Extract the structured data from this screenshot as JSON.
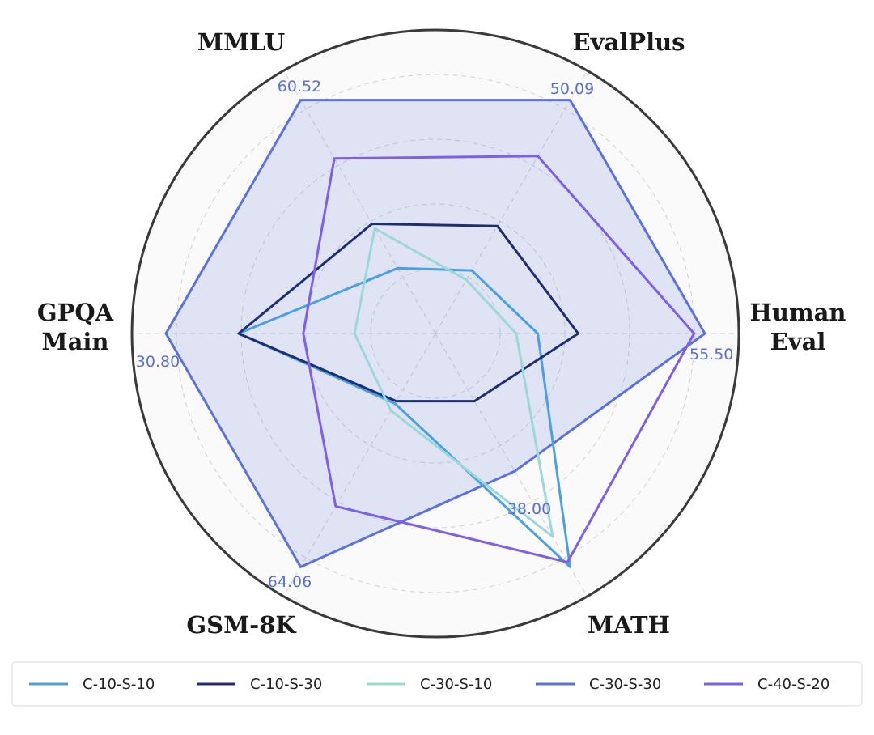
{
  "chart_data": {
    "type": "radar",
    "axes": [
      {
        "label": [
          "Human",
          "Eval"
        ],
        "max_label": "55.50"
      },
      {
        "label": [
          "EvalPlus"
        ],
        "max_label": "50.09"
      },
      {
        "label": [
          "MMLU"
        ],
        "max_label": "60.52"
      },
      {
        "label": [
          "GPQA",
          "Main"
        ],
        "max_label": "30.80"
      },
      {
        "label": [
          "GSM-8K"
        ],
        "max_label": "64.06"
      },
      {
        "label": [
          "MATH"
        ],
        "max_label": "38.00"
      }
    ],
    "normalization": "each axis scaled 0-1 relative to the labeled best value",
    "grid": true,
    "legend_position": "bottom",
    "series": [
      {
        "name": "C-10-S-10",
        "color": "#4b9fe3",
        "fill": false,
        "values": [
          0.38,
          0.27,
          0.28,
          0.73,
          0.3,
          1.0
        ]
      },
      {
        "name": "C-10-S-30",
        "color": "#1c2f73",
        "fill": false,
        "values": [
          0.53,
          0.46,
          0.47,
          0.73,
          0.29,
          0.29
        ]
      },
      {
        "name": "C-30-S-10",
        "color": "#9ad9d8",
        "fill": false,
        "values": [
          0.3,
          0.23,
          0.45,
          0.3,
          0.33,
          0.87
        ]
      },
      {
        "name": "C-30-S-30",
        "color": "#5a73dc",
        "fill": true,
        "values": [
          1.0,
          1.0,
          1.0,
          1.0,
          1.0,
          0.59
        ]
      },
      {
        "name": "C-40-S-20",
        "color": "#7f5ee8",
        "fill": false,
        "values": [
          0.96,
          0.76,
          0.75,
          0.49,
          0.74,
          0.98
        ]
      }
    ]
  }
}
